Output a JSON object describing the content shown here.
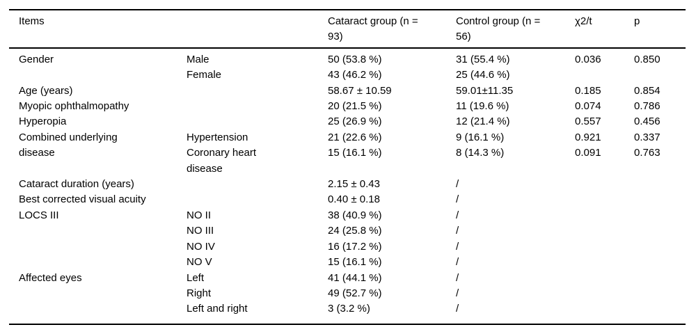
{
  "page": {
    "background": "#ffffff",
    "text_color": "#000000",
    "rule_color": "#000000"
  },
  "table": {
    "header": {
      "items": "Items",
      "cataract_group": "Cataract group (n = 93)",
      "control_group": "Control group (n = 56)",
      "chi2_t": "χ2/t",
      "p": "p"
    },
    "rows": [
      {
        "item": "Gender",
        "rowspan": 2,
        "sub": "Male",
        "cataract": "50 (53.8 %)",
        "control": "31 (55.4 %)",
        "chi2_t": "0.036",
        "p": "0.850"
      },
      {
        "sub": "Female",
        "cataract": "43 (46.2 %)",
        "control": "25 (44.6 %)",
        "chi2_t": "",
        "p": ""
      },
      {
        "item": "Age (years)",
        "rowspan": 1,
        "sub": "",
        "cataract": "58.67 ± 10.59",
        "control": "59.01±11.35",
        "chi2_t": "0.185",
        "p": "0.854"
      },
      {
        "item": "Myopic ophthalmopathy",
        "rowspan": 1,
        "sub": "",
        "cataract": "20 (21.5 %)",
        "control": "11 (19.6 %)",
        "chi2_t": "0.074",
        "p": "0.786"
      },
      {
        "item": "Hyperopia",
        "rowspan": 1,
        "sub": "",
        "cataract": "25 (26.9 %)",
        "control": "12 (21.4 %)",
        "chi2_t": "0.557",
        "p": "0.456"
      },
      {
        "item": "Combined underlying disease",
        "rowspan": 2,
        "sub": "Hypertension",
        "cataract": "21 (22.6 %)",
        "control": "9 (16.1 %)",
        "chi2_t": "0.921",
        "p": "0.337"
      },
      {
        "sub": "Coronary heart disease",
        "cataract": "15 (16.1 %)",
        "control": "8 (14.3 %)",
        "chi2_t": "0.091",
        "p": "0.763"
      },
      {
        "item": "Cataract duration (years)",
        "rowspan": 1,
        "sub": "",
        "cataract": "2.15 ± 0.43",
        "control": "/",
        "chi2_t": "",
        "p": ""
      },
      {
        "item": "Best corrected visual acuity",
        "rowspan": 1,
        "sub": "",
        "cataract": "0.40 ± 0.18",
        "control": "/",
        "chi2_t": "",
        "p": ""
      },
      {
        "item": "LOCS III",
        "rowspan": 4,
        "sub": "NO II",
        "cataract": "38 (40.9 %)",
        "control": "/",
        "chi2_t": "",
        "p": ""
      },
      {
        "sub": "NO III",
        "cataract": "24 (25.8 %)",
        "control": "/",
        "chi2_t": "",
        "p": ""
      },
      {
        "sub": "NO IV",
        "cataract": "16 (17.2 %)",
        "control": "/",
        "chi2_t": "",
        "p": ""
      },
      {
        "sub": "NO V",
        "cataract": "15 (16.1 %)",
        "control": "/",
        "chi2_t": "",
        "p": ""
      },
      {
        "item": "Affected eyes",
        "rowspan": 3,
        "sub": "Left",
        "cataract": "41 (44.1 %)",
        "control": "/",
        "chi2_t": "",
        "p": ""
      },
      {
        "sub": "Right",
        "cataract": "49 (52.7 %)",
        "control": "/",
        "chi2_t": "",
        "p": ""
      },
      {
        "sub": "Left and right",
        "cataract": "3 (3.2 %)",
        "control": "/",
        "chi2_t": "",
        "p": ""
      }
    ]
  }
}
